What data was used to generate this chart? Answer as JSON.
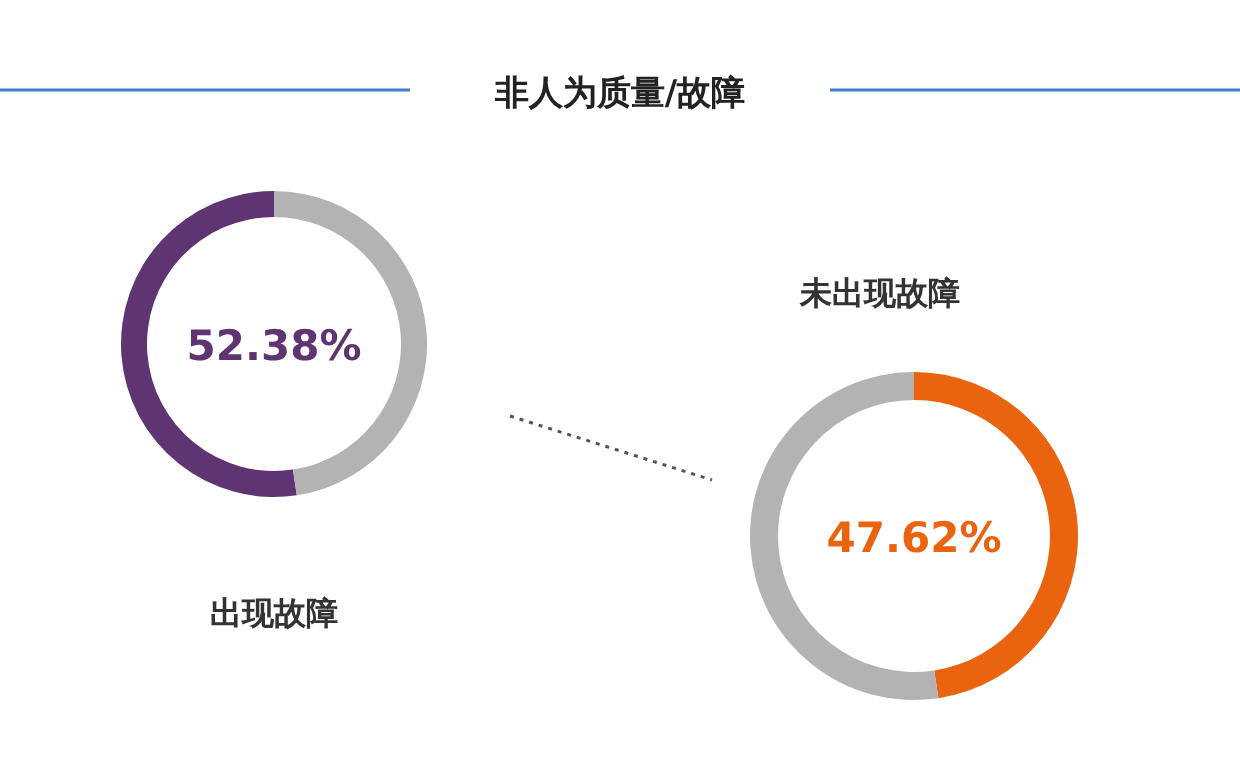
{
  "chart_data": [
    {
      "type": "donut",
      "title": "非人为质量/故障",
      "categories": [
        "出现故障",
        null
      ],
      "values": [
        52.38,
        47.62
      ],
      "colors": [
        "#5e3473",
        "#b3b3b3"
      ],
      "value_labels": [
        "52.38%",
        null
      ]
    },
    {
      "type": "donut",
      "categories": [
        "未出现故障",
        null
      ],
      "values": [
        47.62,
        52.38
      ],
      "colors": [
        "#ea6410",
        "#b3b3b3"
      ],
      "value_labels": [
        "47.62%",
        null
      ]
    }
  ]
}
